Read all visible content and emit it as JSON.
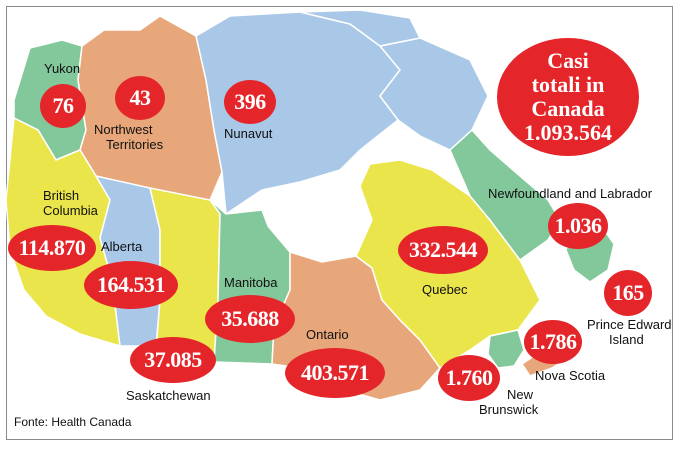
{
  "title": {
    "line1": "Casi",
    "line2": "totali in",
    "line3": "Canada",
    "total": "1.093.564"
  },
  "source": "Fonte: Health Canada",
  "colors": {
    "green": "#83c89b",
    "orange": "#e8a77a",
    "blue": "#a9c8e8",
    "yellow": "#eae54a",
    "red": "#e4262a"
  },
  "regions": [
    {
      "id": "yukon",
      "name": [
        "Yukon"
      ],
      "cases": "76",
      "color": "green"
    },
    {
      "id": "northwest-territories",
      "name": [
        "Northwest",
        "Territories"
      ],
      "cases": "43",
      "color": "orange"
    },
    {
      "id": "nunavut",
      "name": [
        "Nunavut"
      ],
      "cases": "396",
      "color": "blue"
    },
    {
      "id": "british-columbia",
      "name": [
        "British",
        "Columbia"
      ],
      "cases": "114.870",
      "color": "yellow"
    },
    {
      "id": "alberta",
      "name": [
        "Alberta"
      ],
      "cases": "164.531",
      "color": "blue"
    },
    {
      "id": "saskatchewan",
      "name": [
        "Saskatchewan"
      ],
      "cases": "37.085",
      "color": "yellow"
    },
    {
      "id": "manitoba",
      "name": [
        "Manitoba"
      ],
      "cases": "35.688",
      "color": "green"
    },
    {
      "id": "ontario",
      "name": [
        "Ontario"
      ],
      "cases": "403.571",
      "color": "orange"
    },
    {
      "id": "quebec",
      "name": [
        "Quebec"
      ],
      "cases": "332.544",
      "color": "yellow"
    },
    {
      "id": "newfoundland-and-labrador",
      "name": [
        "Newfoundland and Labrador"
      ],
      "cases": "1.036",
      "color": "green"
    },
    {
      "id": "prince-edward-island",
      "name": [
        "Prince Edward",
        "Island"
      ],
      "cases": "165",
      "color": "orange"
    },
    {
      "id": "nova-scotia",
      "name": [
        "Nova Scotia"
      ],
      "cases": "1.786",
      "color": "orange"
    },
    {
      "id": "new-brunswick",
      "name": [
        "New",
        "Brunswick"
      ],
      "cases": "1.760",
      "color": "green"
    }
  ]
}
